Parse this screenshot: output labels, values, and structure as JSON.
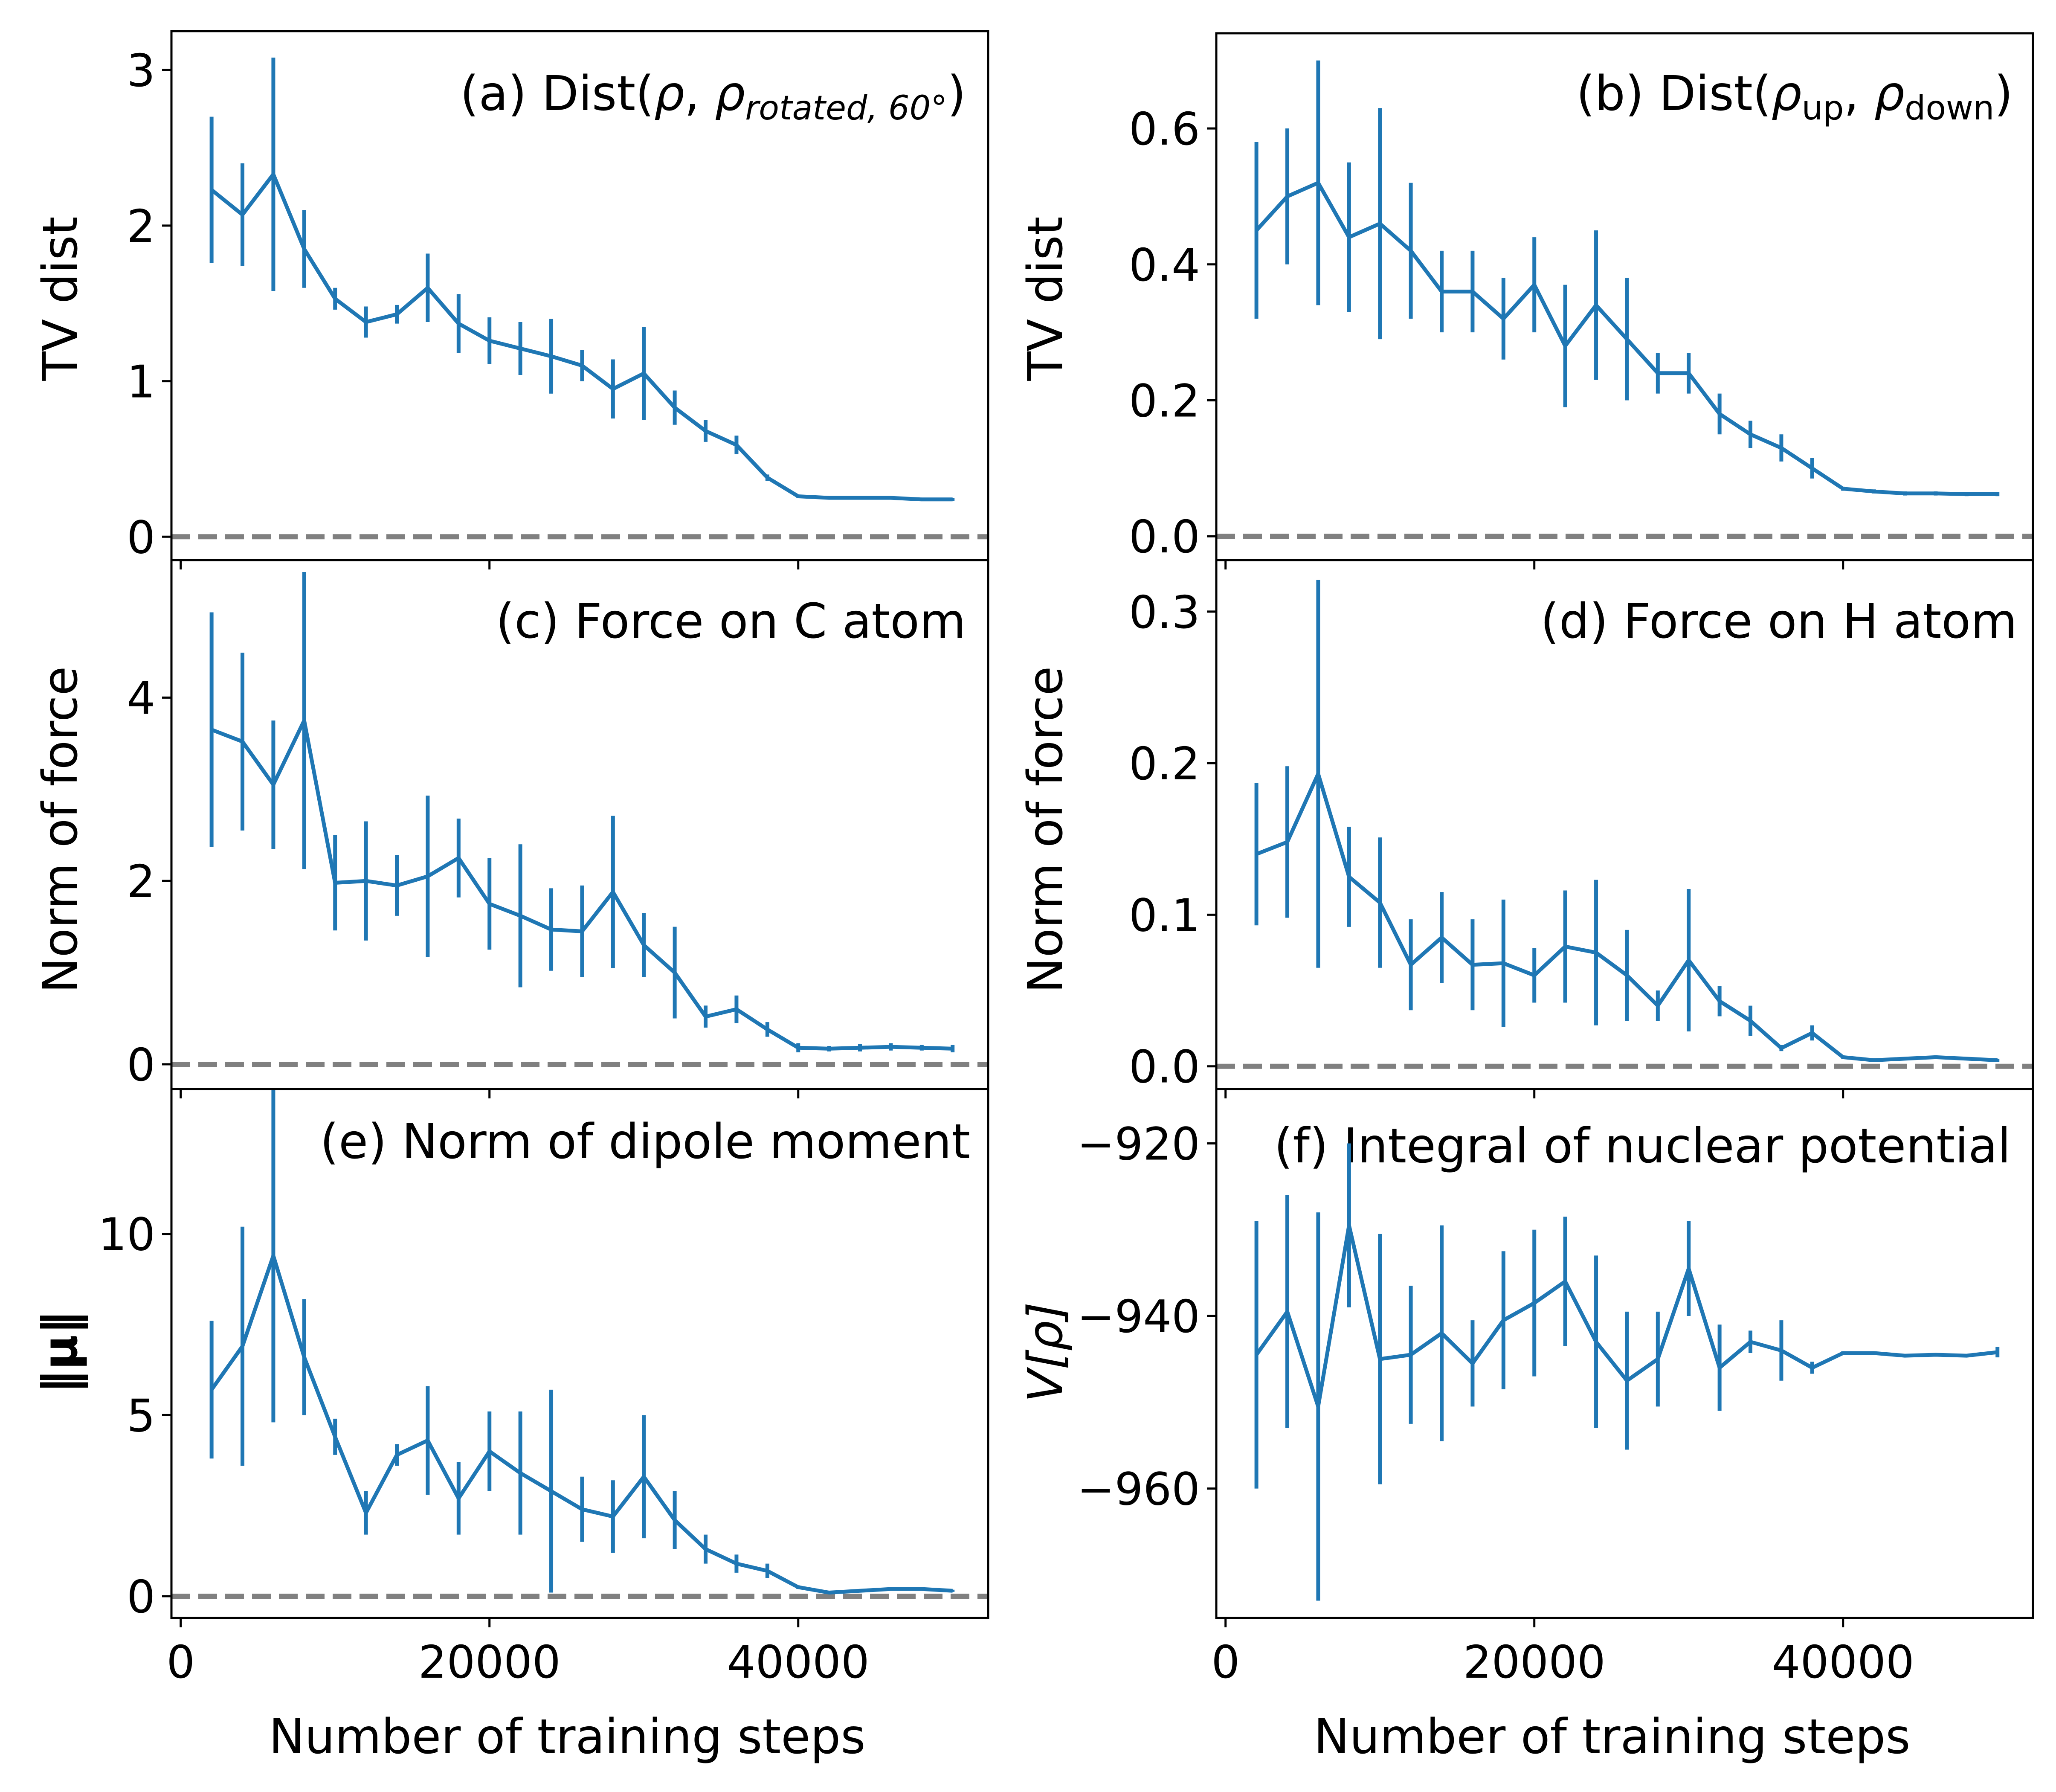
{
  "figure": {
    "xlabel": "Number of training steps",
    "series_color": "#1f77b4",
    "reference_line_color": "#808080"
  },
  "chart_data": [
    {
      "id": "a",
      "type": "line",
      "title": "(a) Dist(ρ, ρrotated, 60°)",
      "title_main": "(a) Dist(",
      "title_rho": "ρ",
      "title_comma": ", ",
      "title_rho2": "ρ",
      "title_sub": "rotated, 60°",
      "title_close": ")",
      "ylabel": "TV dist",
      "xlim": [
        -600,
        52300
      ],
      "ylim": [
        -0.15,
        3.25
      ],
      "yticks": [
        0,
        1,
        2,
        3
      ],
      "ytick_labels": [
        "0",
        "1",
        "2",
        "3"
      ],
      "xticks": [
        0,
        20000,
        40000
      ],
      "xtick_labels": [
        "0",
        "20000",
        "40000"
      ],
      "show_xticklabels": false,
      "reference_line": 0,
      "x": [
        2000,
        4000,
        6000,
        8000,
        10000,
        12000,
        14000,
        16000,
        18000,
        20000,
        22000,
        24000,
        26000,
        28000,
        30000,
        32000,
        34000,
        36000,
        38000,
        40000,
        42000,
        44000,
        46000,
        48000,
        50000
      ],
      "y": [
        2.23,
        2.07,
        2.33,
        1.85,
        1.53,
        1.38,
        1.43,
        1.6,
        1.37,
        1.26,
        1.21,
        1.16,
        1.1,
        0.95,
        1.05,
        0.83,
        0.68,
        0.59,
        0.38,
        0.26,
        0.25,
        0.25,
        0.25,
        0.24,
        0.24
      ],
      "yerr": [
        0.47,
        0.33,
        0.75,
        0.25,
        0.07,
        0.1,
        0.06,
        0.22,
        0.19,
        0.15,
        0.17,
        0.24,
        0.1,
        0.19,
        0.3,
        0.11,
        0.07,
        0.06,
        0.02,
        0.01,
        0.01,
        0.01,
        0.01,
        0.01,
        0.01
      ]
    },
    {
      "id": "b",
      "type": "line",
      "title": "(b) Dist(ρup, ρdown)",
      "title_main": "(b) Dist(",
      "title_rho": "ρ",
      "title_sub": "up",
      "title_comma": ", ",
      "title_rho2": "ρ",
      "title_sub2": "down",
      "title_close": ")",
      "ylabel": "TV dist",
      "xlim": [
        -600,
        52300
      ],
      "ylim": [
        -0.035,
        0.74
      ],
      "yticks": [
        0.0,
        0.2,
        0.4,
        0.6
      ],
      "ytick_labels": [
        "0.0",
        "0.2",
        "0.4",
        "0.6"
      ],
      "xticks": [
        0,
        20000,
        40000
      ],
      "xtick_labels": [
        "0",
        "20000",
        "40000"
      ],
      "show_xticklabels": false,
      "reference_line": 0,
      "x": [
        2000,
        4000,
        6000,
        8000,
        10000,
        12000,
        14000,
        16000,
        18000,
        20000,
        22000,
        24000,
        26000,
        28000,
        30000,
        32000,
        34000,
        36000,
        38000,
        40000,
        42000,
        44000,
        46000,
        48000,
        50000
      ],
      "y": [
        0.45,
        0.5,
        0.52,
        0.44,
        0.46,
        0.42,
        0.36,
        0.36,
        0.32,
        0.37,
        0.28,
        0.34,
        0.29,
        0.24,
        0.24,
        0.18,
        0.15,
        0.13,
        0.1,
        0.07,
        0.066,
        0.063,
        0.063,
        0.062,
        0.062
      ],
      "yerr": [
        0.13,
        0.1,
        0.18,
        0.11,
        0.17,
        0.1,
        0.06,
        0.06,
        0.06,
        0.07,
        0.09,
        0.11,
        0.09,
        0.03,
        0.03,
        0.03,
        0.02,
        0.02,
        0.015,
        0.003,
        0.003,
        0.003,
        0.003,
        0.003,
        0.003
      ]
    },
    {
      "id": "c",
      "type": "line",
      "title": "(c) Force on C atom",
      "ylabel": "Norm of force",
      "xlim": [
        -600,
        52300
      ],
      "ylim": [
        -0.27,
        5.5
      ],
      "yticks": [
        0,
        2,
        4
      ],
      "ytick_labels": [
        "0",
        "2",
        "4"
      ],
      "xticks": [
        0,
        20000,
        40000
      ],
      "xtick_labels": [
        "0",
        "20000",
        "40000"
      ],
      "show_xticklabels": false,
      "reference_line": 0,
      "x": [
        2000,
        4000,
        6000,
        8000,
        10000,
        12000,
        14000,
        16000,
        18000,
        20000,
        22000,
        24000,
        26000,
        28000,
        30000,
        32000,
        34000,
        36000,
        38000,
        40000,
        42000,
        44000,
        46000,
        48000,
        50000
      ],
      "y": [
        3.65,
        3.52,
        3.05,
        3.75,
        1.98,
        2.0,
        1.95,
        2.05,
        2.25,
        1.75,
        1.62,
        1.47,
        1.45,
        1.88,
        1.3,
        1.0,
        0.52,
        0.6,
        0.38,
        0.18,
        0.17,
        0.18,
        0.19,
        0.18,
        0.17
      ],
      "yerr": [
        1.28,
        0.97,
        0.7,
        1.62,
        0.52,
        0.65,
        0.33,
        0.88,
        0.43,
        0.5,
        0.78,
        0.45,
        0.5,
        0.83,
        0.35,
        0.5,
        0.12,
        0.15,
        0.08,
        0.05,
        0.03,
        0.04,
        0.04,
        0.03,
        0.04
      ]
    },
    {
      "id": "d",
      "type": "line",
      "title": "(d) Force on H atom",
      "ylabel": "Norm of force",
      "xlim": [
        -600,
        52300
      ],
      "ylim": [
        -0.015,
        0.334
      ],
      "yticks": [
        0.0,
        0.1,
        0.2,
        0.3
      ],
      "ytick_labels": [
        "0.0",
        "0.1",
        "0.2",
        "0.3"
      ],
      "xticks": [
        0,
        20000,
        40000
      ],
      "xtick_labels": [
        "0",
        "20000",
        "40000"
      ],
      "show_xticklabels": false,
      "reference_line": 0,
      "x": [
        2000,
        4000,
        6000,
        8000,
        10000,
        12000,
        14000,
        16000,
        18000,
        20000,
        22000,
        24000,
        26000,
        28000,
        30000,
        32000,
        34000,
        36000,
        38000,
        40000,
        42000,
        44000,
        46000,
        48000,
        50000
      ],
      "y": [
        0.14,
        0.148,
        0.193,
        0.125,
        0.108,
        0.067,
        0.085,
        0.067,
        0.068,
        0.06,
        0.079,
        0.075,
        0.06,
        0.04,
        0.07,
        0.043,
        0.03,
        0.012,
        0.022,
        0.006,
        0.004,
        0.005,
        0.006,
        0.005,
        0.004
      ],
      "yerr": [
        0.047,
        0.05,
        0.128,
        0.033,
        0.043,
        0.03,
        0.03,
        0.03,
        0.042,
        0.018,
        0.037,
        0.048,
        0.03,
        0.01,
        0.047,
        0.01,
        0.01,
        0.002,
        0.005,
        0.001,
        0.001,
        0.001,
        0.001,
        0.001,
        0.001
      ]
    },
    {
      "id": "e",
      "type": "line",
      "title": "(e) Norm of dipole moment",
      "ylabel": "‖μ‖",
      "xlim": [
        -600,
        52300
      ],
      "ylim": [
        -0.6,
        14.0
      ],
      "yticks": [
        0,
        5,
        10
      ],
      "ytick_labels": [
        "0",
        "5",
        "10"
      ],
      "xticks": [
        0,
        20000,
        40000
      ],
      "xtick_labels": [
        "0",
        "20000",
        "40000"
      ],
      "show_xticklabels": true,
      "reference_line": 0,
      "x": [
        2000,
        4000,
        6000,
        8000,
        10000,
        12000,
        14000,
        16000,
        18000,
        20000,
        22000,
        24000,
        26000,
        28000,
        30000,
        32000,
        34000,
        36000,
        38000,
        40000,
        42000,
        44000,
        46000,
        48000,
        50000
      ],
      "y": [
        5.7,
        6.9,
        9.4,
        6.6,
        4.4,
        2.3,
        3.9,
        4.3,
        2.7,
        4.0,
        3.4,
        2.9,
        2.4,
        2.2,
        3.3,
        2.1,
        1.3,
        0.9,
        0.7,
        0.25,
        0.1,
        0.15,
        0.2,
        0.2,
        0.15
      ],
      "yerr": [
        1.9,
        3.3,
        4.6,
        1.6,
        0.5,
        0.6,
        0.3,
        1.5,
        1.0,
        1.1,
        1.7,
        2.8,
        0.9,
        1.0,
        1.7,
        0.8,
        0.4,
        0.25,
        0.2,
        0.05,
        0.03,
        0.03,
        0.03,
        0.03,
        0.03
      ]
    },
    {
      "id": "f",
      "type": "line",
      "title": "(f) Integral of nuclear potential",
      "ylabel": "V[ρ]",
      "xlim": [
        -600,
        52300
      ],
      "ylim": [
        -975.0,
        -913.7
      ],
      "yticks": [
        -920,
        -940,
        -960
      ],
      "ytick_labels": [
        "−920",
        "−940",
        "−960"
      ],
      "xticks": [
        0,
        20000,
        40000
      ],
      "xtick_labels": [
        "0",
        "20000",
        "40000"
      ],
      "show_xticklabels": true,
      "reference_line": null,
      "x": [
        2000,
        4000,
        6000,
        8000,
        10000,
        12000,
        14000,
        16000,
        18000,
        20000,
        22000,
        24000,
        26000,
        28000,
        30000,
        32000,
        34000,
        36000,
        38000,
        40000,
        42000,
        44000,
        46000,
        48000,
        50000
      ],
      "y": [
        -944.5,
        -939.5,
        -950.5,
        -929.5,
        -945.0,
        -944.5,
        -942.0,
        -945.5,
        -940.5,
        -938.5,
        -936.0,
        -943.0,
        -947.5,
        -945.0,
        -934.5,
        -946.0,
        -943.0,
        -944.0,
        -946.0,
        -944.3,
        -944.3,
        -944.6,
        -944.5,
        -944.6,
        -944.2
      ],
      "yerr": [
        15.5,
        13.5,
        22.5,
        9.5,
        14.5,
        8.0,
        12.5,
        5.0,
        8.0,
        8.5,
        7.5,
        10.0,
        8.0,
        5.5,
        5.5,
        5.0,
        1.3,
        3.5,
        0.7,
        0.2,
        0.2,
        0.2,
        0.2,
        0.2,
        0.6
      ]
    }
  ]
}
